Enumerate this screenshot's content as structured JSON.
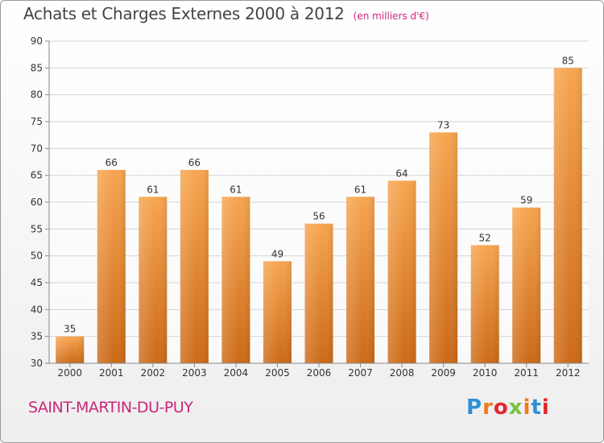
{
  "header": {
    "title": "Achats et Charges Externes 2000 à 2012",
    "unit": "(en milliers d'€)"
  },
  "footer": {
    "place": "SAINT-MARTIN-DU-PUY",
    "logo_text": "Proxiti",
    "logo_colors": [
      "#2f8fd6",
      "#f07a1a",
      "#e4262e",
      "#7cc142",
      "#f07a1a",
      "#2f8fd6",
      "#e4262e"
    ]
  },
  "chart_data": {
    "type": "bar",
    "title": "Achats et Charges Externes 2000 à 2012",
    "subtitle": "(en milliers d'€)",
    "categories": [
      "2000",
      "2001",
      "2002",
      "2003",
      "2004",
      "2005",
      "2006",
      "2007",
      "2008",
      "2009",
      "2010",
      "2011",
      "2012"
    ],
    "values": [
      35,
      66,
      61,
      66,
      61,
      49,
      56,
      61,
      64,
      73,
      52,
      59,
      85
    ],
    "ylim": [
      30,
      90
    ],
    "yticks": [
      30,
      35,
      40,
      45,
      50,
      55,
      60,
      65,
      70,
      75,
      80,
      85,
      90
    ],
    "grid": true,
    "bar_color_top": "#f7a54f",
    "bar_color_bottom": "#cc6a18"
  }
}
